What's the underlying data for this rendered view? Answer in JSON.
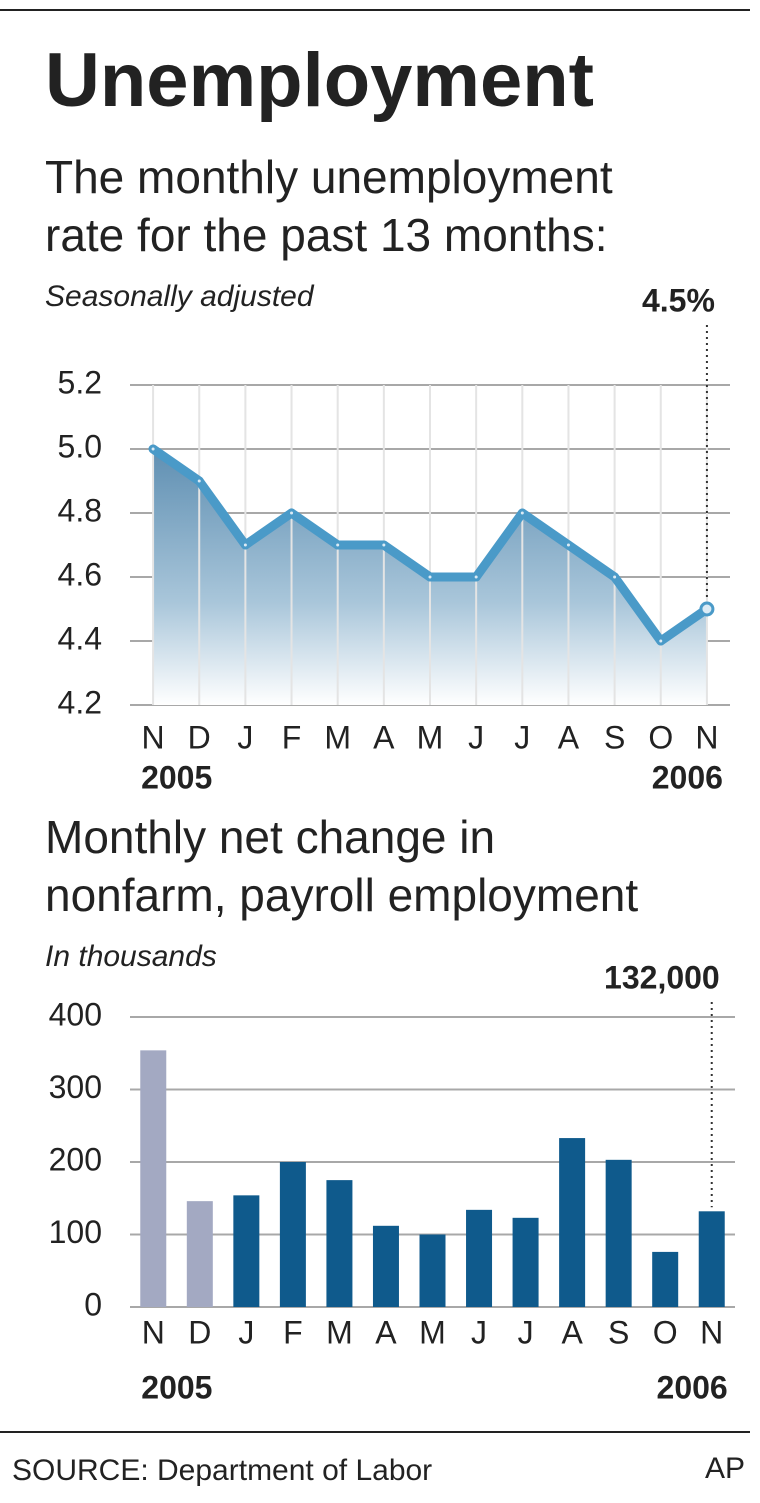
{
  "title": "Unemployment",
  "source": "SOURCE: Department of Labor",
  "credit": "AP",
  "chart_data": [
    {
      "type": "line",
      "title": "The monthly unemployment rate for the past 13 months:",
      "subtitle": "Seasonally adjusted",
      "categories": [
        "N",
        "D",
        "J",
        "F",
        "M",
        "A",
        "M",
        "J",
        "J",
        "A",
        "S",
        "O",
        "N"
      ],
      "category_years": [
        "2005",
        null,
        null,
        null,
        null,
        null,
        null,
        null,
        null,
        null,
        null,
        null,
        "2006"
      ],
      "values": [
        5.0,
        4.9,
        4.7,
        4.8,
        4.7,
        4.7,
        4.6,
        4.6,
        4.8,
        4.7,
        4.6,
        4.4,
        4.5
      ],
      "value_labels": [
        null,
        null,
        null,
        null,
        null,
        null,
        null,
        null,
        null,
        null,
        null,
        null,
        "4.5%"
      ],
      "color": "#4a9ac8",
      "ylim": [
        4.2,
        5.2
      ],
      "yticks": [
        4.2,
        4.4,
        4.6,
        4.8,
        {
          "value": 5,
          "label": "5.0"
        },
        5.2
      ],
      "grid": true
    },
    {
      "type": "bar",
      "title": "Monthly net change in nonfarm, payroll employment",
      "subtitle": "In thousands",
      "categories": [
        "N",
        "D",
        "J",
        "F",
        "M",
        "A",
        "M",
        "J",
        "J",
        "A",
        "S",
        "O",
        "N"
      ],
      "category_years": [
        "2005",
        null,
        null,
        null,
        null,
        null,
        null,
        null,
        null,
        null,
        null,
        null,
        "2006"
      ],
      "values": [
        354,
        146,
        154,
        200,
        175,
        112,
        100,
        134,
        123,
        233,
        203,
        76,
        132
      ],
      "value_labels": [
        null,
        null,
        null,
        null,
        null,
        null,
        null,
        null,
        null,
        null,
        null,
        null,
        "132,000"
      ],
      "colors": [
        "#a3a9c2",
        "#a3a9c2",
        "#0f5a8c",
        "#0f5a8c",
        "#0f5a8c",
        "#0f5a8c",
        "#0f5a8c",
        "#0f5a8c",
        "#0f5a8c",
        "#0f5a8c",
        "#0f5a8c",
        "#0f5a8c",
        "#0f5a8c"
      ],
      "ylim": [
        0,
        400
      ],
      "yticks": [
        0,
        100,
        200,
        300,
        400
      ],
      "grid": true
    }
  ]
}
